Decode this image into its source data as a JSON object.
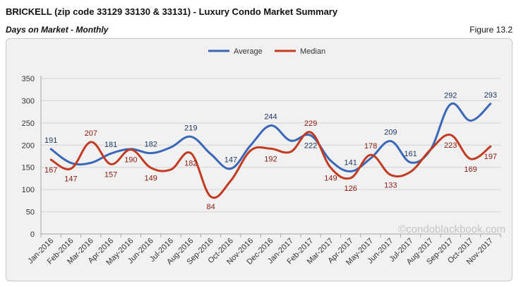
{
  "header": {
    "title": "BRICKELL (zip code 33129 33130 & 33131) - Luxury Condo Market Summary",
    "subtitle": "Days on Market - Monthly",
    "figure_label": "Figure 13.2"
  },
  "watermark": "©condoblackbook.com",
  "colors": {
    "average": "#3a67b8",
    "median": "#c23b22",
    "average_label": "#1f3864",
    "median_label": "#8b1a10"
  },
  "chart_data": {
    "type": "line",
    "title": "",
    "xlabel": "",
    "ylabel": "",
    "ylim": [
      0,
      350
    ],
    "yticks": [
      0,
      50,
      100,
      150,
      200,
      250,
      300,
      350
    ],
    "grid": true,
    "legend_position": "top-center",
    "categories": [
      "Jan-2016",
      "Feb-2016",
      "Mar-2016",
      "Apr-2016",
      "May-2016",
      "Jun-2016",
      "Jul-2016",
      "Aug-2016",
      "Sep-2016",
      "Oct-2016",
      "Nov-2016",
      "Dec-2016",
      "Jan-2017",
      "Feb-2017",
      "Mar-2017",
      "Apr-2017",
      "May-2017",
      "Jun-2017",
      "Jul-2017",
      "Aug-2017",
      "Sep-2017",
      "Oct-2017",
      "Nov-2017"
    ],
    "series": [
      {
        "name": "Average",
        "values": [
          191,
          160,
          160,
          181,
          191,
          182,
          195,
          219,
          180,
          147,
          200,
          244,
          210,
          222,
          165,
          141,
          170,
          209,
          161,
          190,
          292,
          255,
          293
        ],
        "labels": [
          "191",
          null,
          null,
          "181",
          null,
          "182",
          null,
          "219",
          null,
          "147",
          null,
          "244",
          null,
          "222",
          null,
          "141",
          null,
          "209",
          "161",
          null,
          "292",
          null,
          "293"
        ]
      },
      {
        "name": "Median",
        "values": [
          167,
          147,
          207,
          157,
          190,
          149,
          145,
          182,
          84,
          120,
          188,
          192,
          185,
          229,
          149,
          126,
          178,
          133,
          140,
          190,
          223,
          169,
          197
        ],
        "labels": [
          "167",
          "147",
          "207",
          "157",
          "190",
          "149",
          null,
          "182",
          "84",
          null,
          null,
          "192",
          null,
          "229",
          "149",
          "126",
          "178",
          "133",
          null,
          null,
          "223",
          "169",
          "197"
        ]
      }
    ]
  }
}
